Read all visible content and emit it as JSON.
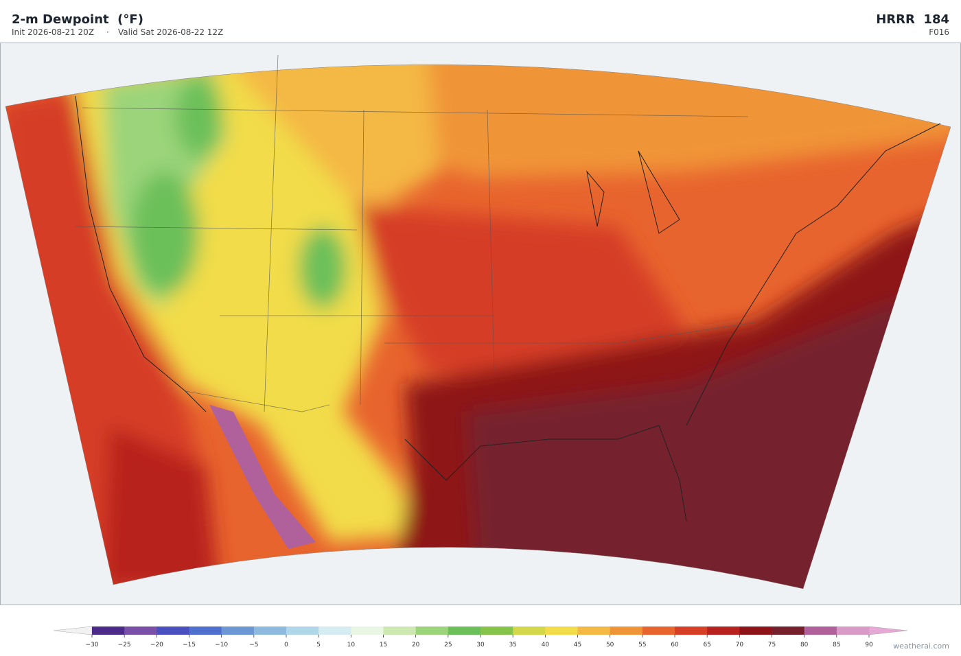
{
  "header": {
    "title": "2-m Dewpoint  (°F)",
    "init": "Init 2026-08-21 20Z",
    "separator": "·",
    "valid": "Valid Sat 2026-08-22 12Z",
    "model": "HRRR  184",
    "forecast_hour": "F016"
  },
  "colorbar": {
    "ticks": [
      {
        "value": -30,
        "label": "−30"
      },
      {
        "value": -25,
        "label": "−25"
      },
      {
        "value": -20,
        "label": "−20"
      },
      {
        "value": -15,
        "label": "−15"
      },
      {
        "value": -10,
        "label": "−10"
      },
      {
        "value": -5,
        "label": "−5"
      },
      0,
      5,
      10,
      15,
      20,
      25,
      30,
      35,
      40,
      45,
      50,
      55,
      60,
      65,
      70,
      75,
      80,
      85,
      90
    ],
    "colors": [
      "#4b2a8a",
      "#7a4fa8",
      "#4a4fbf",
      "#4f6fcf",
      "#6d96d4",
      "#8fbadf",
      "#b0d6ea",
      "#d5ecf2",
      "#e8f6e3",
      "#cde8b0",
      "#9bd47a",
      "#6cc05a",
      "#86c34a",
      "#d2d84a",
      "#f2dc4a",
      "#f4b844",
      "#f09438",
      "#e8642e",
      "#d63e26",
      "#b8221e",
      "#8e1419",
      "#76202e",
      "#b0609a",
      "#d99ac8"
    ],
    "under_color": "#f2f2f2",
    "over_color": "#e6a8d4"
  },
  "credit": "weatherai.com"
}
